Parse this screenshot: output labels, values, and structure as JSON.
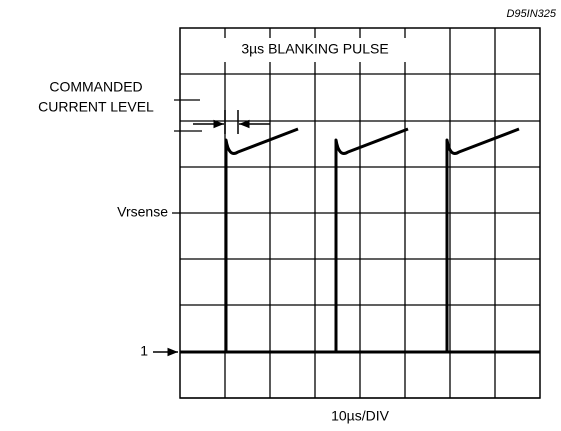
{
  "figure_id": "D95IN325",
  "annotations": {
    "blanking": "3µs BLANKING PULSE",
    "commanded": [
      "COMMANDED",
      "CURRENT LEVEL"
    ],
    "vrsense": "Vrsense",
    "level_one": "1",
    "time_scale": "10µs/DIV"
  }
}
